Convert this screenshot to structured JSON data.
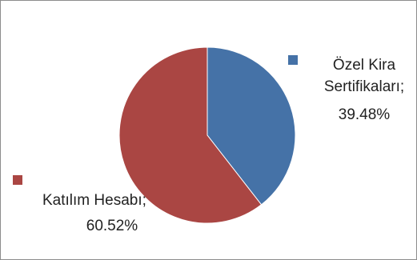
{
  "chart_data": {
    "type": "pie",
    "slices": [
      {
        "label": "Özel Kira Sertifikaları",
        "label_lines": [
          "Özel Kira",
          "Sertifikaları;"
        ],
        "value": 39.48,
        "value_text": "39.48%",
        "color": "#4572A7"
      },
      {
        "label": "Katılım Hesabı",
        "label_lines": [
          "Katılım Hesabı;"
        ],
        "value": 60.52,
        "value_text": "60.52%",
        "color": "#AA4643"
      }
    ],
    "start_angle_deg": 0,
    "direction": "clockwise",
    "legend": "none"
  }
}
